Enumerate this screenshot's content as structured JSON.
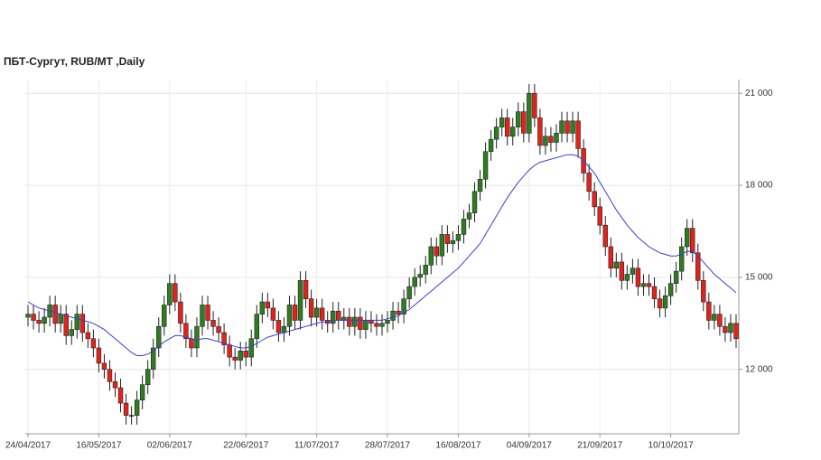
{
  "chart_data": {
    "type": "candlestick",
    "title": "ПБТ-Сургут,  RUB/MT ,Daily",
    "categories": [
      "24/04/2017",
      null,
      null,
      null,
      null,
      null,
      null,
      null,
      null,
      null,
      null,
      null,
      null,
      "16/05/2017",
      null,
      null,
      null,
      null,
      null,
      null,
      null,
      null,
      null,
      null,
      null,
      null,
      "02/06/2017",
      null,
      null,
      null,
      null,
      null,
      null,
      null,
      null,
      null,
      null,
      null,
      null,
      null,
      "22/06/2017",
      null,
      null,
      null,
      null,
      null,
      null,
      null,
      null,
      null,
      null,
      null,
      null,
      "11/07/2017",
      null,
      null,
      null,
      null,
      null,
      null,
      null,
      null,
      null,
      null,
      null,
      null,
      "28/07/2017",
      null,
      null,
      null,
      null,
      null,
      null,
      null,
      null,
      null,
      null,
      null,
      null,
      "16/08/2017",
      null,
      null,
      null,
      null,
      null,
      null,
      null,
      null,
      null,
      null,
      null,
      null,
      "04/09/2017",
      null,
      null,
      null,
      null,
      null,
      null,
      null,
      null,
      null,
      null,
      null,
      null,
      "21/09/2017",
      null,
      null,
      null,
      null,
      null,
      null,
      null,
      null,
      null,
      null,
      null,
      null,
      "10/10/2017",
      null,
      null,
      null,
      null,
      null,
      null,
      null,
      null,
      null,
      null,
      null,
      null
    ],
    "open": [
      13700,
      13800,
      13600,
      13500,
      13700,
      14100,
      13500,
      13800,
      13100,
      13300,
      13800,
      13200,
      13000,
      12700,
      12200,
      12000,
      11600,
      11400,
      10900,
      10500,
      10500,
      11000,
      11500,
      12000,
      12700,
      13400,
      14100,
      14800,
      14200,
      13500,
      13000,
      12700,
      13400,
      14100,
      13600,
      13400,
      13200,
      12800,
      12400,
      12300,
      12600,
      12400,
      13000,
      13800,
      14200,
      14000,
      13600,
      13200,
      13400,
      14100,
      13600,
      14900,
      14300,
      13700,
      14000,
      13600,
      13500,
      13900,
      13600,
      13700,
      13400,
      13700,
      13300,
      13600,
      13500,
      13400,
      13500,
      13600,
      13900,
      13800,
      14300,
      14700,
      15000,
      15100,
      15400,
      16000,
      15700,
      16400,
      16100,
      16200,
      16400,
      16900,
      17100,
      17800,
      18200,
      19100,
      19500,
      19900,
      20200,
      19600,
      19900,
      20400,
      19700,
      21000,
      20200,
      19300,
      19600,
      19400,
      19700,
      20100,
      19700,
      20100,
      19200,
      18400,
      17800,
      17300,
      16700,
      16000,
      15300,
      15500,
      14900,
      15100,
      15300,
      14700,
      14800,
      14700,
      14300,
      14000,
      14400,
      14800,
      15200,
      16000,
      16600,
      15800,
      14900,
      14200,
      13600,
      13800,
      13400,
      13200,
      13500
    ],
    "high": [
      14100,
      14100,
      13900,
      14000,
      14400,
      14400,
      14100,
      14100,
      13600,
      14100,
      14100,
      13500,
      13300,
      13000,
      12500,
      12300,
      11900,
      11700,
      11200,
      10800,
      11300,
      11800,
      12300,
      13000,
      13700,
      14400,
      15100,
      15100,
      14500,
      13800,
      13300,
      13700,
      14400,
      14400,
      13900,
      13700,
      13500,
      13100,
      12700,
      12900,
      12900,
      13300,
      14100,
      14500,
      14500,
      14300,
      13900,
      13700,
      14400,
      14400,
      15200,
      15200,
      14600,
      14300,
      14300,
      13900,
      14200,
      14200,
      14000,
      14000,
      14000,
      14000,
      13900,
      13900,
      13800,
      13800,
      13900,
      14200,
      14200,
      14600,
      15000,
      15300,
      15400,
      15700,
      16300,
      16300,
      16700,
      16700,
      16500,
      16700,
      17200,
      17400,
      18100,
      18500,
      19400,
      19800,
      20200,
      20500,
      20500,
      20200,
      20700,
      20700,
      21300,
      21300,
      20500,
      19900,
      19900,
      20000,
      20400,
      20400,
      20400,
      20400,
      19500,
      18700,
      18100,
      17600,
      17000,
      16300,
      15800,
      15800,
      15400,
      15600,
      15600,
      15100,
      15100,
      15000,
      14600,
      14700,
      15100,
      15500,
      16300,
      16900,
      16900,
      16100,
      15200,
      14500,
      14100,
      14100,
      13700,
      13800,
      13800
    ],
    "low": [
      13400,
      13300,
      13200,
      13200,
      13400,
      13200,
      13200,
      12800,
      12800,
      13000,
      12900,
      12700,
      12400,
      11900,
      11700,
      11300,
      11100,
      10600,
      10200,
      10200,
      10200,
      10700,
      11200,
      11700,
      12400,
      13100,
      13800,
      13900,
      13200,
      12700,
      12400,
      12400,
      13100,
      13300,
      13100,
      12900,
      12500,
      12100,
      12000,
      12000,
      12100,
      12100,
      12700,
      13500,
      13700,
      13300,
      12900,
      12900,
      13100,
      13300,
      13300,
      14000,
      13400,
      13400,
      13300,
      13200,
      13200,
      13300,
      13300,
      13100,
      13100,
      13000,
      13000,
      13200,
      13100,
      13100,
      13200,
      13300,
      13500,
      13500,
      14000,
      14400,
      14700,
      14800,
      15100,
      15400,
      15400,
      15800,
      15800,
      15900,
      16100,
      16600,
      16800,
      17500,
      17900,
      18800,
      19200,
      19600,
      19300,
      19300,
      19600,
      19400,
      19400,
      19900,
      19000,
      19000,
      19100,
      19100,
      19400,
      19400,
      19400,
      18900,
      18100,
      17500,
      17000,
      16400,
      15700,
      15000,
      15000,
      14600,
      14600,
      14800,
      14400,
      14400,
      14400,
      14000,
      13700,
      13700,
      14100,
      14500,
      14900,
      15700,
      15500,
      14600,
      13900,
      13300,
      13300,
      13100,
      12900,
      12900,
      12700
    ],
    "close": [
      13800,
      13600,
      13500,
      13700,
      14100,
      13500,
      13800,
      13100,
      13300,
      13800,
      13200,
      13000,
      12700,
      12200,
      12000,
      11600,
      11400,
      10900,
      10500,
      10500,
      11000,
      11500,
      12000,
      12700,
      13400,
      14100,
      14800,
      14200,
      13500,
      13000,
      12700,
      13400,
      14100,
      13600,
      13400,
      13200,
      12800,
      12400,
      12300,
      12600,
      12400,
      13000,
      13800,
      14200,
      14000,
      13600,
      13200,
      13400,
      14100,
      13600,
      14900,
      14300,
      13700,
      14000,
      13600,
      13500,
      13900,
      13600,
      13700,
      13400,
      13700,
      13300,
      13600,
      13500,
      13400,
      13500,
      13600,
      13900,
      13800,
      14300,
      14700,
      15000,
      15100,
      15400,
      16000,
      15700,
      16400,
      16100,
      16200,
      16400,
      16900,
      17100,
      17800,
      18200,
      19100,
      19500,
      19900,
      20200,
      19600,
      19900,
      20400,
      19700,
      21000,
      20200,
      19300,
      19600,
      19400,
      19700,
      20100,
      19700,
      20100,
      19200,
      18400,
      17800,
      17300,
      16700,
      16000,
      15300,
      15500,
      14900,
      15100,
      15300,
      14700,
      14800,
      14700,
      14300,
      14000,
      14400,
      14800,
      15200,
      16000,
      16600,
      15800,
      14900,
      14200,
      13600,
      13800,
      13400,
      13200,
      13500,
      13000
    ],
    "up_color": "#2f7d22",
    "down_color": "#e3231b",
    "moving_average": {
      "color": "#3b3bd4",
      "values": [
        14200,
        14100,
        14000,
        13950,
        13900,
        13850,
        13800,
        13750,
        13700,
        13650,
        13600,
        13550,
        13500,
        13400,
        13300,
        13150,
        13000,
        12850,
        12700,
        12550,
        12450,
        12450,
        12500,
        12600,
        12750,
        12900,
        13000,
        13100,
        13100,
        13050,
        13000,
        12950,
        13000,
        13000,
        12950,
        12900,
        12850,
        12800,
        12750,
        12700,
        12700,
        12750,
        12850,
        12950,
        13050,
        13100,
        13150,
        13200,
        13250,
        13300,
        13350,
        13400,
        13450,
        13500,
        13550,
        13550,
        13600,
        13600,
        13600,
        13600,
        13600,
        13600,
        13600,
        13600,
        13600,
        13600,
        13650,
        13700,
        13750,
        13850,
        13950,
        14100,
        14250,
        14400,
        14550,
        14700,
        14850,
        15000,
        15150,
        15300,
        15500,
        15700,
        15900,
        16100,
        16400,
        16700,
        17000,
        17300,
        17600,
        17850,
        18100,
        18300,
        18500,
        18650,
        18750,
        18800,
        18850,
        18900,
        18950,
        19000,
        19000,
        18950,
        18800,
        18600,
        18400,
        18100,
        17800,
        17500,
        17200,
        16950,
        16700,
        16500,
        16300,
        16150,
        16000,
        15900,
        15800,
        15750,
        15700,
        15700,
        15750,
        15850,
        15850,
        15700,
        15500,
        15300,
        15100,
        14950,
        14800,
        14650,
        14500
      ]
    },
    "ylim": [
      9900,
      21450
    ],
    "yticks": [
      {
        "value": 12000,
        "label": "12 000"
      },
      {
        "value": 15000,
        "label": "15 000"
      },
      {
        "value": 18000,
        "label": "18 000"
      },
      {
        "value": 21000,
        "label": "21 000"
      }
    ],
    "grid": true
  }
}
